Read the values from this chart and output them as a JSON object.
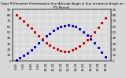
{
  "title": "Solar PV/Inverter Performance Sun Altitude Angle & Sun Incidence Angle on PV Panels",
  "x_times": [
    6.5,
    7.0,
    7.5,
    8.0,
    8.5,
    9.0,
    9.5,
    10.0,
    10.5,
    11.0,
    11.5,
    12.0,
    12.5,
    13.0,
    13.5,
    14.0,
    14.5,
    15.0,
    15.5,
    16.0,
    16.5,
    17.0,
    17.5,
    18.0,
    18.5
  ],
  "blue_y": [
    2,
    5,
    9,
    14,
    19,
    25,
    31,
    37,
    43,
    48,
    53,
    57,
    60,
    62,
    63,
    62,
    60,
    56,
    51,
    45,
    38,
    31,
    23,
    15,
    7
  ],
  "red_y": [
    80,
    75,
    70,
    63,
    57,
    50,
    44,
    38,
    32,
    27,
    23,
    20,
    18,
    17,
    17,
    19,
    22,
    26,
    31,
    37,
    44,
    51,
    59,
    67,
    75
  ],
  "ylim": [
    0,
    90
  ],
  "xlim": [
    6.0,
    19.2
  ],
  "yticks": [
    0,
    10,
    20,
    30,
    40,
    50,
    60,
    70,
    80,
    90
  ],
  "ytick_labels": [
    "0",
    "10",
    "20",
    "30",
    "40",
    "50",
    "60",
    "70",
    "80",
    "90"
  ],
  "xticks": [
    6.5,
    7.5,
    8.5,
    9.5,
    10.5,
    11.5,
    12.5,
    13.5,
    14.5,
    15.5,
    16.5,
    17.5,
    18.5
  ],
  "xtick_labels": [
    "6:30",
    "7:30",
    "8:30",
    "9:30",
    "10:30",
    "11:30",
    "12:30",
    "13:30",
    "14:30",
    "15:30",
    "16:30",
    "17:30",
    "18:30"
  ],
  "bg_color": "#d8d8d8",
  "blue_color": "#0000cc",
  "red_color": "#cc0000",
  "title_fontsize": 3.0,
  "tick_fontsize": 2.8,
  "grid_color": "#ffffff",
  "marker_size": 1.2
}
